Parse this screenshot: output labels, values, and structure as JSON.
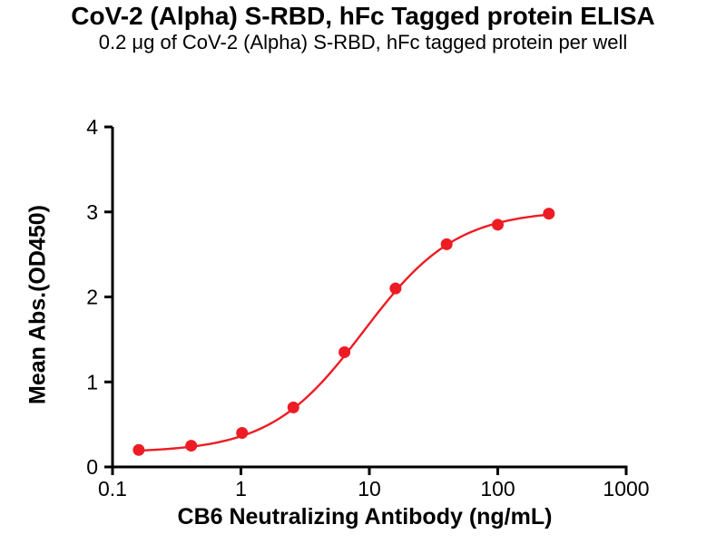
{
  "header": {
    "title": "CoV-2 (Alpha) S-RBD, hFc Tagged protein ELISA",
    "subtitle": "0.2 μg of CoV-2 (Alpha) S-RBD, hFc tagged protein per well"
  },
  "chart_data": {
    "type": "scatter",
    "title": "CoV-2 (Alpha) S-RBD, hFc Tagged protein ELISA",
    "subtitle": "0.2 μg of CoV-2 (Alpha) S-RBD, hFc tagged protein per well",
    "xlabel": "CB6 Neutralizing Antibody (ng/mL)",
    "ylabel": "Mean Abs.(OD450)",
    "x_scale": "log10",
    "xlim": [
      0.1,
      1000
    ],
    "ylim": [
      0,
      4
    ],
    "x_tick_values": [
      0.1,
      1,
      10,
      100,
      1000
    ],
    "x_tick_labels": [
      "0.1",
      "1",
      "10",
      "100",
      "1000"
    ],
    "y_tick_values": [
      0,
      1,
      2,
      3,
      4
    ],
    "y_tick_labels": [
      "0",
      "1",
      "2",
      "3",
      "4"
    ],
    "grid": false,
    "legend": "none",
    "axis_color": "#000000",
    "series": [
      {
        "marker": "circle",
        "color": "#ED1C24",
        "x": [
          0.16,
          0.41,
          1.02,
          2.56,
          6.4,
          16,
          40,
          100,
          250
        ],
        "y": [
          0.2,
          0.25,
          0.4,
          0.7,
          1.35,
          2.1,
          2.62,
          2.85,
          2.98
        ]
      }
    ],
    "fit_curve": {
      "model": "4PL",
      "bottom": 0.17,
      "top": 3.02,
      "ec50": 9.0,
      "hill_slope": 1.2
    }
  },
  "colors": {
    "accent_red": "#ED1C24",
    "text": "#000000",
    "background": "#FFFFFF"
  }
}
